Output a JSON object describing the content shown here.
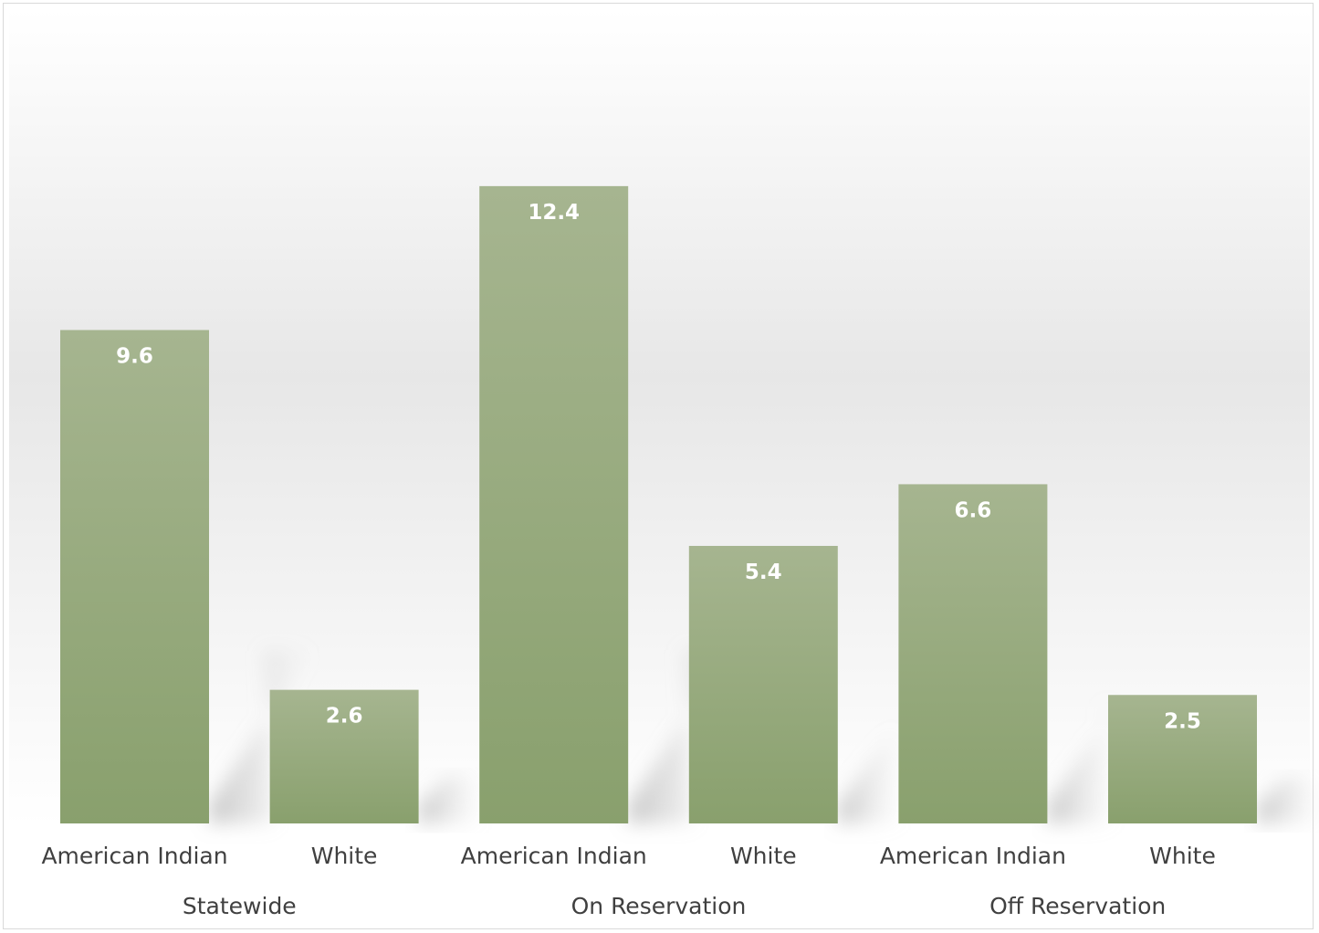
{
  "chart_data": {
    "type": "bar",
    "groups": [
      {
        "label": "Statewide",
        "categories": [
          "American Indian",
          "White"
        ],
        "values": [
          9.6,
          2.6
        ]
      },
      {
        "label": "On Reservation",
        "categories": [
          "American Indian",
          "White"
        ],
        "values": [
          12.4,
          5.4
        ]
      },
      {
        "label": "Off Reservation",
        "categories": [
          "American Indian",
          "White"
        ],
        "values": [
          6.6,
          2.5
        ]
      }
    ],
    "value_labels": [
      "9.6",
      "2.6",
      "12.4",
      "5.4",
      "6.6",
      "2.5"
    ],
    "ylim": [
      0,
      15.2
    ],
    "grid": false,
    "legend": "none",
    "colors": {
      "bar_top": "#a6b590",
      "bar_bottom": "#89a06d",
      "label_text": "#404040",
      "value_text": "#ffffff"
    }
  }
}
